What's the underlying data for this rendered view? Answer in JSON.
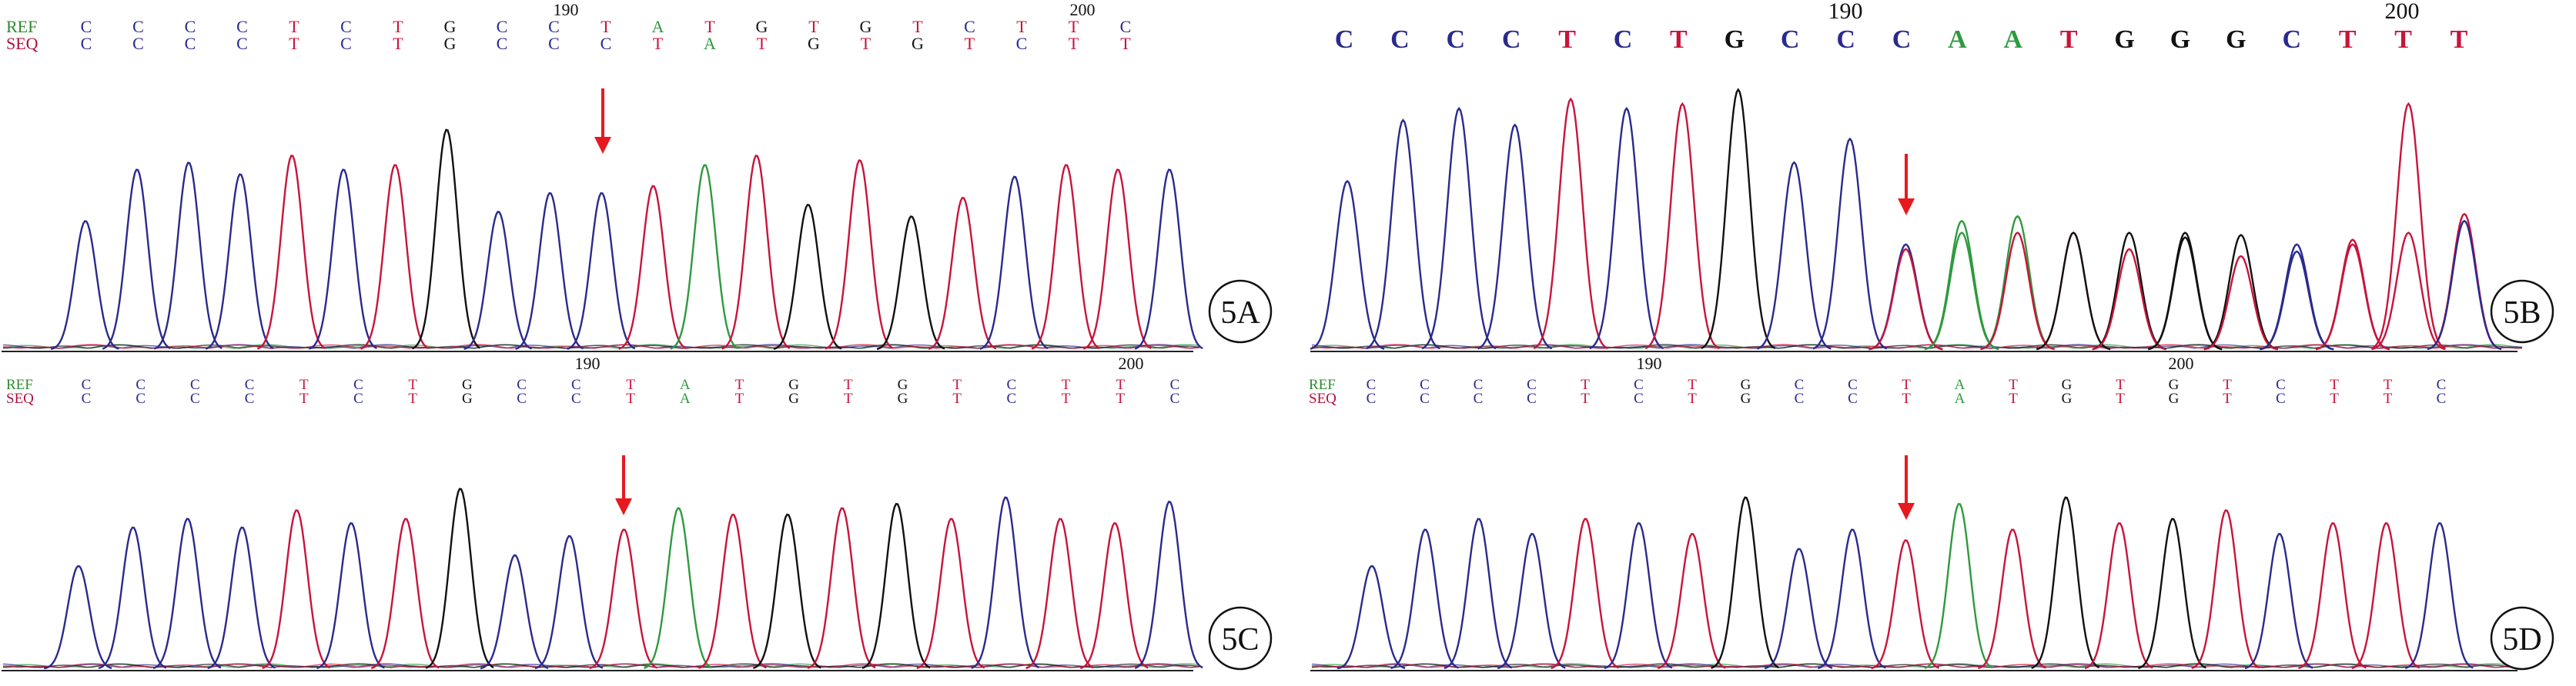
{
  "colors": {
    "A": "#2e9a3e",
    "C": "#2a2a8e",
    "G": "#111111",
    "T": "#c8143c",
    "arrow": "#e8191e",
    "ref_label": "#2e8a2e",
    "seq_label": "#b0103c"
  },
  "chart_data": [
    {
      "type": "line",
      "subtype": "sequencing-chromatogram",
      "panel_label": "5A",
      "ref_label": "REF",
      "seq_label": "SEQ",
      "position_ticks": [
        "190",
        "200"
      ],
      "ref": [
        "C",
        "C",
        "C",
        "C",
        "T",
        "C",
        "T",
        "G",
        "C",
        "C",
        "T",
        "A",
        "T",
        "G",
        "T",
        "G",
        "T",
        "C",
        "T",
        "T",
        "C"
      ],
      "seq": [
        "C",
        "C",
        "C",
        "C",
        "T",
        "C",
        "T",
        "G",
        "C",
        "C",
        "C",
        "T",
        "A",
        "T",
        "G",
        "T",
        "G",
        "T",
        "C",
        "T",
        "T"
      ],
      "arrow_at_index": 10,
      "peak_bases": [
        "C",
        "C",
        "C",
        "C",
        "T",
        "C",
        "T",
        "G",
        "C",
        "C",
        "C",
        "T",
        "A",
        "T",
        "G",
        "T",
        "G",
        "T",
        "C",
        "T",
        "T",
        "C"
      ],
      "peak_heights": [
        0.55,
        0.77,
        0.8,
        0.75,
        0.83,
        0.77,
        0.79,
        0.94,
        0.59,
        0.67,
        0.67,
        0.7,
        0.79,
        0.83,
        0.62,
        0.81,
        0.57,
        0.65,
        0.74,
        0.79,
        0.77,
        0.77
      ]
    },
    {
      "type": "line",
      "subtype": "sequencing-chromatogram",
      "panel_label": "5B",
      "position_ticks": [
        "190",
        "200"
      ],
      "seq": [
        "C",
        "C",
        "C",
        "C",
        "T",
        "C",
        "T",
        "G",
        "C",
        "C",
        "C",
        "A",
        "A",
        "T",
        "G",
        "G",
        "G",
        "C",
        "T",
        "T",
        "T"
      ],
      "arrow_at_index": 10,
      "peak_bases": [
        "C",
        "C",
        "C",
        "C",
        "T",
        "C",
        "T",
        "G",
        "C",
        "C",
        "C",
        "A",
        "A",
        "T",
        "G",
        "G",
        "G",
        "C",
        "T",
        "T",
        "T"
      ],
      "peak_heights": [
        0.72,
        0.98,
        1.03,
        0.96,
        1.07,
        1.03,
        1.05,
        1.11,
        0.8,
        0.9,
        0.45,
        0.55,
        0.57,
        0.5,
        0.5,
        0.5,
        0.49,
        0.42,
        0.47,
        1.05,
        0.58
      ],
      "secondary_bases": [
        null,
        null,
        null,
        null,
        null,
        null,
        null,
        null,
        null,
        null,
        "T",
        "A",
        "T",
        "G",
        "T",
        "G",
        "T",
        "C",
        "T",
        "T",
        "C"
      ],
      "secondary_heights": [
        0,
        0,
        0,
        0,
        0,
        0,
        0,
        0,
        0,
        0,
        0.43,
        0.5,
        0.5,
        0.5,
        0.43,
        0.48,
        0.4,
        0.45,
        0.45,
        0.5,
        0.55
      ]
    },
    {
      "type": "line",
      "subtype": "sequencing-chromatogram",
      "panel_label": "5C",
      "ref_label": "REF",
      "seq_label": "SEQ",
      "position_ticks": [
        "190",
        "200"
      ],
      "ref": [
        "C",
        "C",
        "C",
        "C",
        "T",
        "C",
        "T",
        "G",
        "C",
        "C",
        "T",
        "A",
        "T",
        "G",
        "T",
        "G",
        "T",
        "C",
        "T",
        "T",
        "C"
      ],
      "seq": [
        "C",
        "C",
        "C",
        "C",
        "T",
        "C",
        "T",
        "G",
        "C",
        "C",
        "T",
        "A",
        "T",
        "G",
        "T",
        "G",
        "T",
        "C",
        "T",
        "T",
        "C"
      ],
      "arrow_at_index": 10,
      "peak_bases": [
        "C",
        "C",
        "C",
        "C",
        "T",
        "C",
        "T",
        "G",
        "C",
        "C",
        "T",
        "A",
        "T",
        "G",
        "T",
        "G",
        "T",
        "C",
        "T",
        "T",
        "C"
      ],
      "peak_heights": [
        0.48,
        0.66,
        0.7,
        0.66,
        0.74,
        0.68,
        0.7,
        0.84,
        0.53,
        0.62,
        0.65,
        0.75,
        0.72,
        0.72,
        0.75,
        0.77,
        0.7,
        0.8,
        0.7,
        0.68,
        0.78
      ]
    },
    {
      "type": "line",
      "subtype": "sequencing-chromatogram",
      "panel_label": "5D",
      "ref_label": "REF",
      "seq_label": "SEQ",
      "position_ticks": [
        "190",
        "200"
      ],
      "ref": [
        "C",
        "C",
        "C",
        "C",
        "T",
        "C",
        "T",
        "G",
        "C",
        "C",
        "T",
        "A",
        "T",
        "G",
        "T",
        "G",
        "T",
        "C",
        "T",
        "T",
        "C"
      ],
      "seq": [
        "C",
        "C",
        "C",
        "C",
        "T",
        "C",
        "T",
        "G",
        "C",
        "C",
        "T",
        "A",
        "T",
        "G",
        "T",
        "G",
        "T",
        "C",
        "T",
        "T",
        "C"
      ],
      "arrow_at_index": 10,
      "peak_bases": [
        "C",
        "C",
        "C",
        "C",
        "T",
        "C",
        "T",
        "G",
        "C",
        "C",
        "T",
        "A",
        "T",
        "G",
        "T",
        "G",
        "T",
        "C",
        "T",
        "T",
        "C"
      ],
      "peak_heights": [
        0.48,
        0.65,
        0.7,
        0.63,
        0.7,
        0.68,
        0.63,
        0.8,
        0.56,
        0.65,
        0.6,
        0.77,
        0.65,
        0.8,
        0.68,
        0.7,
        0.74,
        0.63,
        0.68,
        0.68,
        0.68
      ]
    }
  ]
}
